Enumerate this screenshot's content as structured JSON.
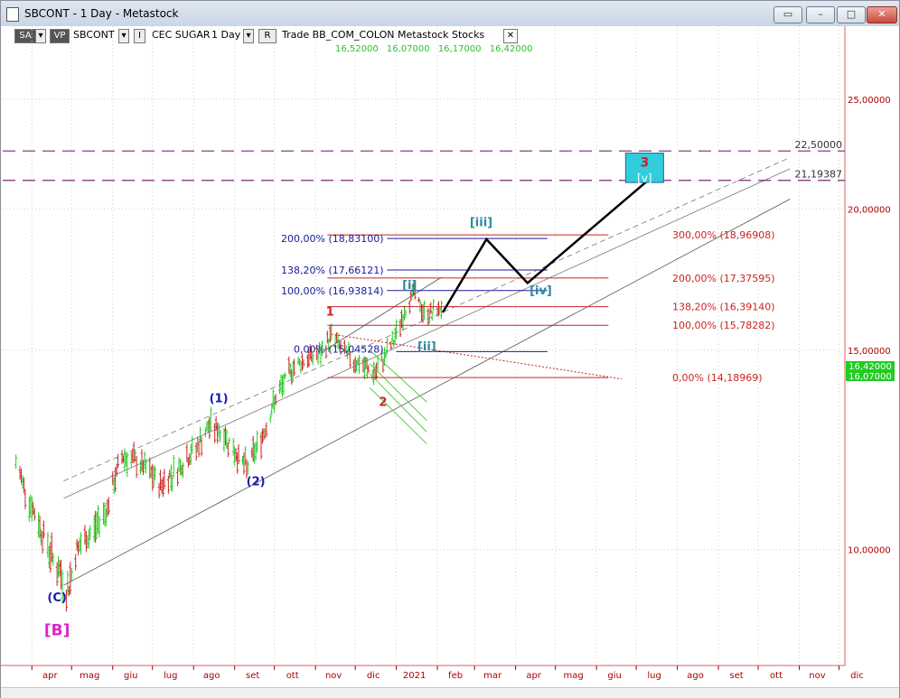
{
  "window": {
    "title": "SBCONT - 1 Day - Metastock",
    "buttons": [
      "▭",
      "–",
      "□",
      "✕"
    ]
  },
  "toolbar": {
    "sa_label": "SA",
    "vp_label": "VP",
    "symbol": "SBCONT",
    "i_label": "I",
    "security_name": "CEC SUGAR",
    "period": "1 Day",
    "r_label": "R",
    "rest": "Trade  BB_COM_COLON  Metastock  Stocks",
    "close": "✕",
    "prices": [
      "16,52000",
      "16,07000",
      "16,17000",
      "16,42000"
    ]
  },
  "colors": {
    "up_bar": "#22cc22",
    "down_bar": "#cc2222",
    "axis_text": "#aa0000",
    "grid": "#cfcfcf",
    "fib_blue": "#1a1a9a",
    "fib_red": "#cc2222",
    "purple": "#7a2a7a",
    "target_box": "#33ccdd",
    "green_channel": "#55cc44"
  },
  "chart_data": {
    "type": "line",
    "ylim": [
      7.9,
      29.0
    ],
    "x_months": [
      "apr",
      "mag",
      "giu",
      "lug",
      "ago",
      "set",
      "ott",
      "nov",
      "dic",
      "2021",
      "feb",
      "mar",
      "apr",
      "mag",
      "giu",
      "lug",
      "ago",
      "set",
      "ott",
      "nov",
      "dic"
    ],
    "y_ticks": [
      {
        "label": "25,00000",
        "value": 25.0
      },
      {
        "label": "20,00000",
        "value": 20.0
      },
      {
        "label": "15,00000",
        "value": 15.0
      },
      {
        "label": "10,00000",
        "value": 10.0
      }
    ],
    "price_path": [
      {
        "x": "2020-03-20",
        "y": 11.9
      },
      {
        "x": "2020-04-01",
        "y": 10.9
      },
      {
        "x": "2020-04-14",
        "y": 10.0
      },
      {
        "x": "2020-04-28",
        "y": 9.2
      },
      {
        "x": "2020-05-05",
        "y": 10.0
      },
      {
        "x": "2020-05-15",
        "y": 10.3
      },
      {
        "x": "2020-05-28",
        "y": 10.9
      },
      {
        "x": "2020-06-08",
        "y": 12.1
      },
      {
        "x": "2020-06-22",
        "y": 11.9
      },
      {
        "x": "2020-07-07",
        "y": 11.4
      },
      {
        "x": "2020-07-20",
        "y": 11.8
      },
      {
        "x": "2020-08-03",
        "y": 12.3
      },
      {
        "x": "2020-08-14",
        "y": 12.9
      },
      {
        "x": "2020-08-25",
        "y": 12.6
      },
      {
        "x": "2020-09-01",
        "y": 12.2
      },
      {
        "x": "2020-09-10",
        "y": 11.8
      },
      {
        "x": "2020-09-22",
        "y": 12.6
      },
      {
        "x": "2020-10-02",
        "y": 13.6
      },
      {
        "x": "2020-10-15",
        "y": 14.5
      },
      {
        "x": "2020-10-28",
        "y": 14.8
      },
      {
        "x": "2020-11-06",
        "y": 14.9
      },
      {
        "x": "2020-11-13",
        "y": 15.5
      },
      {
        "x": "2020-11-23",
        "y": 14.9
      },
      {
        "x": "2020-12-07",
        "y": 14.5
      },
      {
        "x": "2020-12-16",
        "y": 14.3
      },
      {
        "x": "2020-12-30",
        "y": 15.3
      },
      {
        "x": "2021-01-08",
        "y": 16.3
      },
      {
        "x": "2021-01-14",
        "y": 16.9
      },
      {
        "x": "2021-01-21",
        "y": 16.2
      },
      {
        "x": "2021-01-29",
        "y": 16.2
      },
      {
        "x": "2021-02-05",
        "y": 16.4
      }
    ],
    "projection": [
      {
        "x": "2021-02-05",
        "y": 16.2
      },
      {
        "x": "2021-03-10",
        "y": 18.8
      },
      {
        "x": "2021-04-10",
        "y": 17.2
      },
      {
        "x": "2021-07-10",
        "y": 21.2
      }
    ],
    "horizontal_levels": [
      {
        "label": "22,50000",
        "y": 22.5
      },
      {
        "label": "21,19387",
        "y": 21.19387
      }
    ],
    "fib_blue_labels": [
      {
        "label": "200,00% (18,83100)",
        "y": 18.831
      },
      {
        "label": "138,20% (17,66121)",
        "y": 17.66121
      },
      {
        "label": "100,00% (16,93814)",
        "y": 16.93814
      },
      {
        "label": "0,00% (15,04528)",
        "y": 15.04528
      }
    ],
    "fib_red_labels": [
      {
        "label": "300,00% (18,96908)",
        "y": 18.96908
      },
      {
        "label": "200,00% (17,37595)",
        "y": 17.37595
      },
      {
        "label": "138,20% (16,39140)",
        "y": 16.3914
      },
      {
        "label": "100,00% (15,78282)",
        "y": 15.78282
      },
      {
        "label": "0,00% (14,18969)",
        "y": 14.18969
      }
    ],
    "wave_labels": [
      {
        "text": "(C)",
        "color": "#1a1aaa",
        "x": "2020-04-20",
        "y": 9.0
      },
      {
        "text": "[B]",
        "color": "#dd22cc",
        "x": "2020-04-20",
        "y": 8.4
      },
      {
        "text": "(1)",
        "color": "#1a1aaa",
        "x": "2020-08-20",
        "y": 13.5
      },
      {
        "text": "(2)",
        "color": "#1a1aaa",
        "x": "2020-09-17",
        "y": 11.4
      },
      {
        "text": "1",
        "color": "#cc2222",
        "x": "2020-11-12",
        "y": 16.1
      },
      {
        "text": "2",
        "color": "#cc2222",
        "x": "2020-12-22",
        "y": 13.4
      },
      {
        "text": "[i]",
        "color": "#2a8aa0",
        "x": "2021-01-11",
        "y": 17.0
      },
      {
        "text": "[ii]",
        "color": "#2a8aa0",
        "x": "2021-01-24",
        "y": 15.0
      },
      {
        "text": "[iii]",
        "color": "#2a8aa0",
        "x": "2021-03-06",
        "y": 19.3
      },
      {
        "text": "[iv]",
        "color": "#2a8aa0",
        "x": "2021-04-20",
        "y": 16.8
      }
    ],
    "target_box": {
      "main": "3",
      "sub": "[v]"
    },
    "last_price_tags": [
      "16,42000",
      "16,07000"
    ]
  }
}
